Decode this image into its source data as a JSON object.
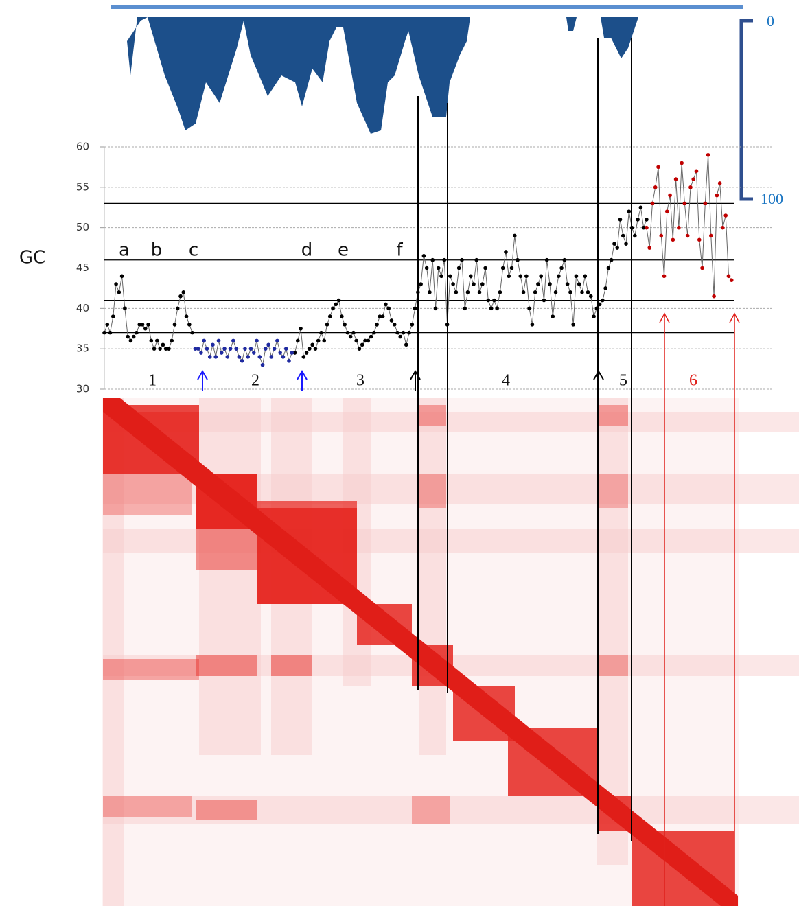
{
  "chart_data": {
    "type": "line",
    "ylabel": "GC",
    "ylim": [
      30,
      60
    ],
    "yticks": [
      30,
      35,
      40,
      45,
      50,
      55,
      60
    ],
    "grid": true,
    "line_color": "#666666",
    "reference_lines": [
      53,
      46,
      41,
      37
    ],
    "letters": [
      "a",
      "b",
      "c",
      "d",
      "e",
      "f"
    ],
    "regions": [
      "1",
      "2",
      "3",
      "4",
      "5",
      "6"
    ],
    "profile_scale": [
      "0",
      "100"
    ],
    "series": [
      {
        "color": "#000000",
        "values": [
          37,
          38,
          37,
          39,
          43,
          42,
          44,
          40,
          36.5,
          36,
          36.5,
          37,
          38,
          38,
          37.5,
          38,
          36,
          35,
          36,
          35,
          35.5,
          35,
          35,
          36,
          38,
          40,
          41.5,
          42,
          39,
          38,
          37,
          null,
          null,
          null,
          null,
          null,
          null,
          null,
          null,
          null,
          null,
          null,
          null,
          null,
          null,
          null,
          null,
          null,
          null,
          null,
          null,
          null,
          null,
          null,
          null,
          null,
          null,
          null,
          null,
          null,
          null,
          null,
          null,
          null,
          null,
          34.5,
          36,
          37.5,
          34,
          34.5,
          35,
          35.5,
          35,
          36,
          37,
          36,
          38,
          39,
          40,
          40.5,
          41,
          39,
          38,
          37,
          36.5,
          37,
          36,
          35,
          35.5,
          36,
          36,
          36.5,
          37,
          38,
          39,
          39,
          40.5,
          40,
          38.5,
          38,
          37,
          36.5,
          37,
          35.5,
          37,
          38,
          40,
          42,
          43,
          46.5,
          45,
          42,
          46,
          40,
          45,
          44,
          46,
          38,
          44,
          43,
          42,
          45,
          46,
          40,
          42,
          44,
          43,
          46,
          42,
          43,
          45,
          41,
          40,
          41,
          40,
          42,
          45,
          47,
          44,
          45,
          49,
          46,
          44,
          42,
          44,
          40,
          38,
          42,
          43,
          44,
          41,
          46,
          43,
          39,
          42,
          44,
          45,
          46,
          43,
          42,
          38,
          44,
          43,
          42,
          44,
          42,
          41.5,
          39,
          40,
          40.5,
          41,
          42.5,
          45,
          46,
          48,
          47.5,
          51,
          49,
          48,
          52,
          50,
          49,
          51,
          52.5,
          50,
          51,
          null,
          null,
          null,
          null,
          null,
          null,
          null,
          null,
          null,
          null,
          null,
          null,
          null,
          null,
          null,
          null,
          null,
          null,
          null,
          null,
          null,
          null,
          null,
          null,
          null,
          null,
          null,
          null,
          null,
          null
        ]
      },
      {
        "color": "#1f2aa0",
        "values": [
          null,
          null,
          null,
          null,
          null,
          null,
          null,
          null,
          null,
          null,
          null,
          null,
          null,
          null,
          null,
          null,
          null,
          null,
          null,
          null,
          null,
          null,
          null,
          null,
          null,
          null,
          null,
          null,
          null,
          null,
          null,
          35,
          35,
          34.5,
          36,
          35,
          34,
          35.5,
          34,
          36,
          34.5,
          35,
          34,
          35,
          36,
          35,
          34,
          33.5,
          35,
          34,
          35,
          34.5,
          36,
          34,
          33,
          35,
          35.5,
          34,
          35,
          36,
          34.5,
          34,
          35,
          33.5,
          34.5,
          null,
          null,
          null,
          null,
          null,
          null,
          null,
          null,
          null,
          null,
          null,
          null,
          null,
          null,
          null,
          null,
          null,
          null,
          null,
          null,
          null,
          null,
          null,
          null,
          null,
          null,
          null,
          null,
          null,
          null,
          null,
          null,
          null,
          null,
          null,
          null,
          null,
          null,
          null,
          null,
          null,
          null,
          null,
          null,
          null,
          null,
          null,
          null,
          null,
          null,
          null,
          null,
          null,
          null,
          null,
          null,
          null,
          null,
          null,
          null,
          null,
          null,
          null,
          null,
          null,
          null,
          null,
          null,
          null,
          null,
          null,
          null,
          null,
          null,
          null,
          null,
          null,
          null,
          null,
          null,
          null,
          null,
          null,
          null,
          null,
          null,
          null,
          null,
          null,
          null,
          null,
          null,
          null,
          null,
          null,
          null,
          null,
          null,
          null,
          null,
          null,
          null,
          null,
          null,
          null,
          null,
          null,
          null,
          null,
          null,
          null,
          null,
          null,
          null,
          null,
          null,
          null,
          null,
          null,
          null,
          null,
          null,
          null,
          null,
          null,
          null,
          null,
          null,
          null,
          null,
          null,
          null,
          null,
          null,
          null,
          null,
          null,
          null,
          null,
          null,
          null,
          null,
          null,
          null,
          null,
          null,
          null,
          null,
          null,
          null,
          null,
          null,
          null,
          null,
          null,
          null,
          null,
          null,
          null,
          null,
          null,
          null,
          null,
          null,
          null,
          null,
          null,
          null,
          null,
          null,
          null,
          null,
          null,
          null,
          null,
          null
        ]
      },
      {
        "color": "#c00000",
        "values": [
          null,
          null,
          null,
          null,
          null,
          null,
          null,
          null,
          null,
          null,
          null,
          null,
          null,
          null,
          null,
          null,
          null,
          null,
          null,
          null,
          null,
          null,
          null,
          null,
          null,
          null,
          null,
          null,
          null,
          null,
          null,
          null,
          null,
          null,
          null,
          null,
          null,
          null,
          null,
          null,
          null,
          null,
          null,
          null,
          null,
          null,
          null,
          null,
          null,
          null,
          null,
          null,
          null,
          null,
          null,
          null,
          null,
          null,
          null,
          null,
          null,
          null,
          null,
          null,
          null,
          null,
          null,
          null,
          null,
          null,
          null,
          null,
          null,
          null,
          null,
          null,
          null,
          null,
          null,
          null,
          null,
          null,
          null,
          null,
          null,
          null,
          null,
          null,
          null,
          null,
          null,
          null,
          null,
          null,
          null,
          null,
          null,
          null,
          null,
          null,
          null,
          null,
          null,
          null,
          null,
          null,
          null,
          null,
          null,
          null,
          null,
          null,
          null,
          null,
          null,
          null,
          null,
          null,
          null,
          null,
          null,
          null,
          null,
          null,
          null,
          null,
          null,
          null,
          null,
          null,
          null,
          null,
          null,
          null,
          null,
          null,
          null,
          null,
          null,
          null,
          null,
          null,
          null,
          null,
          null,
          null,
          null,
          null,
          null,
          null,
          null,
          null,
          null,
          null,
          null,
          null,
          null,
          null,
          null,
          null,
          null,
          null,
          null,
          null,
          null,
          null,
          null,
          null,
          null,
          null,
          null,
          null,
          null,
          null,
          null,
          null,
          null,
          null,
          null,
          null,
          null,
          null,
          null,
          null,
          null,
          50,
          47.5,
          53,
          55,
          57.5,
          49,
          44,
          52,
          54,
          48.5,
          56,
          50,
          58,
          53,
          49,
          55,
          56,
          57,
          48.5,
          45,
          53,
          59,
          49,
          41.5,
          54,
          55.5,
          50,
          51.5,
          44,
          43.5
        ]
      }
    ]
  }
}
